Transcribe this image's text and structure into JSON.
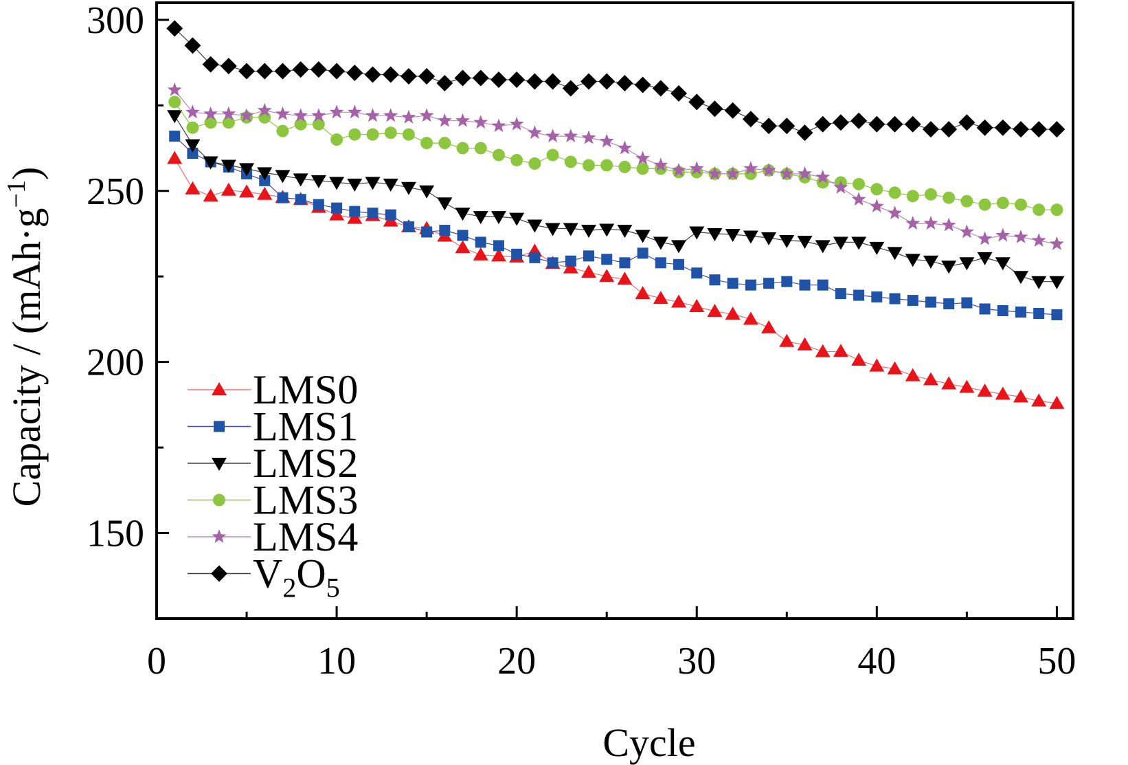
{
  "chart_data": {
    "type": "line",
    "xlabel": "Cycle",
    "ylabel": "Capacity / (mAh·g",
    "ylabel_sup": "−1",
    "ylabel_close": ")",
    "xlim": [
      0,
      50.9
    ],
    "ylim": [
      125,
      305
    ],
    "xticks": [
      0,
      10,
      20,
      30,
      40,
      50
    ],
    "yticks": [
      150,
      200,
      250,
      300
    ],
    "x_minor_ticks": [
      5,
      15,
      25,
      35,
      45
    ],
    "y_minor_ticks": [
      175,
      225,
      275
    ],
    "legend_position": "bottom-left",
    "series": [
      {
        "name": "LMS0",
        "color": "#e8141a",
        "line_color": "#e87070",
        "marker": "triangle-up",
        "values": [
          259.5,
          250.6,
          248.5,
          250.2,
          249.7,
          249.0,
          248.1,
          247.5,
          245.2,
          243.0,
          242.0,
          242.8,
          241.2,
          239.5,
          239.0,
          236.8,
          233.4,
          231.3,
          231.0,
          230.7,
          232.4,
          228.8,
          227.5,
          226.2,
          225.0,
          224.2,
          220.0,
          218.6,
          217.5,
          216.2,
          214.8,
          214.0,
          212.5,
          210.0,
          206.0,
          205.0,
          203.0,
          203.1,
          200.5,
          198.8,
          198.0,
          196.0,
          194.8,
          193.6,
          192.6,
          191.5,
          190.6,
          189.8,
          188.6,
          187.9
        ]
      },
      {
        "name": "LMS1",
        "color": "#1f53a8",
        "line_color": "#4a4a9a",
        "marker": "square",
        "values": [
          266.0,
          261.0,
          258.5,
          257.0,
          255.0,
          253.0,
          248.0,
          247.5,
          246.0,
          245.0,
          244.0,
          243.5,
          243.0,
          239.5,
          238.0,
          238.5,
          237.0,
          235.0,
          234.0,
          231.5,
          230.5,
          229.0,
          229.5,
          231.0,
          230.0,
          229.0,
          231.8,
          229.0,
          228.5,
          226.0,
          224.0,
          223.0,
          222.5,
          223.0,
          223.5,
          222.5,
          222.5,
          220.0,
          219.5,
          219.0,
          218.5,
          218.0,
          217.5,
          217.0,
          217.3,
          215.5,
          215.0,
          214.6,
          214.2,
          213.8
        ]
      },
      {
        "name": "LMS2",
        "color": "#000000",
        "line_color": "#404040",
        "marker": "triangle-down",
        "values": [
          272.0,
          263.5,
          258.5,
          257.5,
          256.5,
          255.3,
          254.5,
          253.5,
          253.0,
          252.5,
          252.0,
          252.5,
          252.0,
          251.0,
          250.0,
          246.5,
          243.5,
          242.5,
          242.5,
          242.0,
          240.0,
          239.0,
          239.0,
          238.5,
          238.8,
          238.5,
          237.0,
          235.0,
          234.0,
          238.0,
          237.5,
          237.3,
          236.8,
          236.3,
          235.5,
          235.3,
          234.0,
          235.0,
          235.0,
          233.5,
          232.0,
          230.0,
          229.5,
          228.0,
          229.0,
          230.5,
          229.0,
          225.0,
          223.5,
          223.5
        ]
      },
      {
        "name": "LMS3",
        "color": "#8cc63e",
        "line_color": "#8cc63e",
        "marker": "circle",
        "values": [
          276.0,
          268.5,
          270.0,
          270.0,
          271.5,
          271.5,
          267.5,
          269.5,
          269.5,
          265.0,
          266.5,
          266.5,
          267.0,
          266.5,
          264.0,
          264.0,
          262.5,
          262.5,
          260.5,
          259.0,
          258.0,
          260.5,
          258.5,
          257.5,
          257.5,
          257.0,
          256.5,
          256.5,
          255.5,
          255.5,
          255.0,
          255.0,
          255.0,
          256.0,
          255.0,
          254.0,
          252.5,
          252.5,
          252.0,
          250.5,
          249.5,
          248.5,
          249.0,
          248.0,
          247.0,
          246.0,
          246.5,
          246.0,
          244.5,
          244.5
        ]
      },
      {
        "name": "LMS4",
        "color": "#a662a8",
        "line_color": "#b98abb",
        "marker": "star",
        "values": [
          279.5,
          273.0,
          272.5,
          272.5,
          272.0,
          273.5,
          272.5,
          272.0,
          272.0,
          273.0,
          273.0,
          272.0,
          272.0,
          271.5,
          272.0,
          270.5,
          270.5,
          270.0,
          269.0,
          269.5,
          267.0,
          266.0,
          266.0,
          265.5,
          264.5,
          262.5,
          259.5,
          257.5,
          256.0,
          256.5,
          255.0,
          255.0,
          256.5,
          256.0,
          255.0,
          255.0,
          254.0,
          251.0,
          247.5,
          245.5,
          243.5,
          240.5,
          240.5,
          240.0,
          238.0,
          236.0,
          237.0,
          236.5,
          235.5,
          234.5
        ]
      },
      {
        "name": "V₂O₅",
        "name_main": "V",
        "name_sub1": "2",
        "name_mid": "O",
        "name_sub2": "5",
        "color": "#000000",
        "line_color": "#404040",
        "marker": "diamond",
        "values": [
          297.5,
          292.5,
          287.0,
          286.5,
          285.0,
          285.0,
          285.0,
          285.5,
          285.5,
          285.0,
          284.5,
          284.0,
          284.0,
          283.5,
          283.5,
          281.5,
          283.0,
          283.0,
          282.5,
          282.5,
          282.0,
          282.0,
          280.0,
          282.0,
          282.0,
          281.5,
          281.0,
          280.0,
          278.5,
          276.0,
          274.0,
          273.5,
          271.0,
          269.0,
          269.0,
          267.0,
          269.5,
          270.0,
          270.5,
          269.5,
          269.5,
          269.5,
          268.0,
          268.0,
          270.0,
          268.5,
          268.5,
          268.0,
          268.0,
          268.0
        ]
      }
    ]
  }
}
